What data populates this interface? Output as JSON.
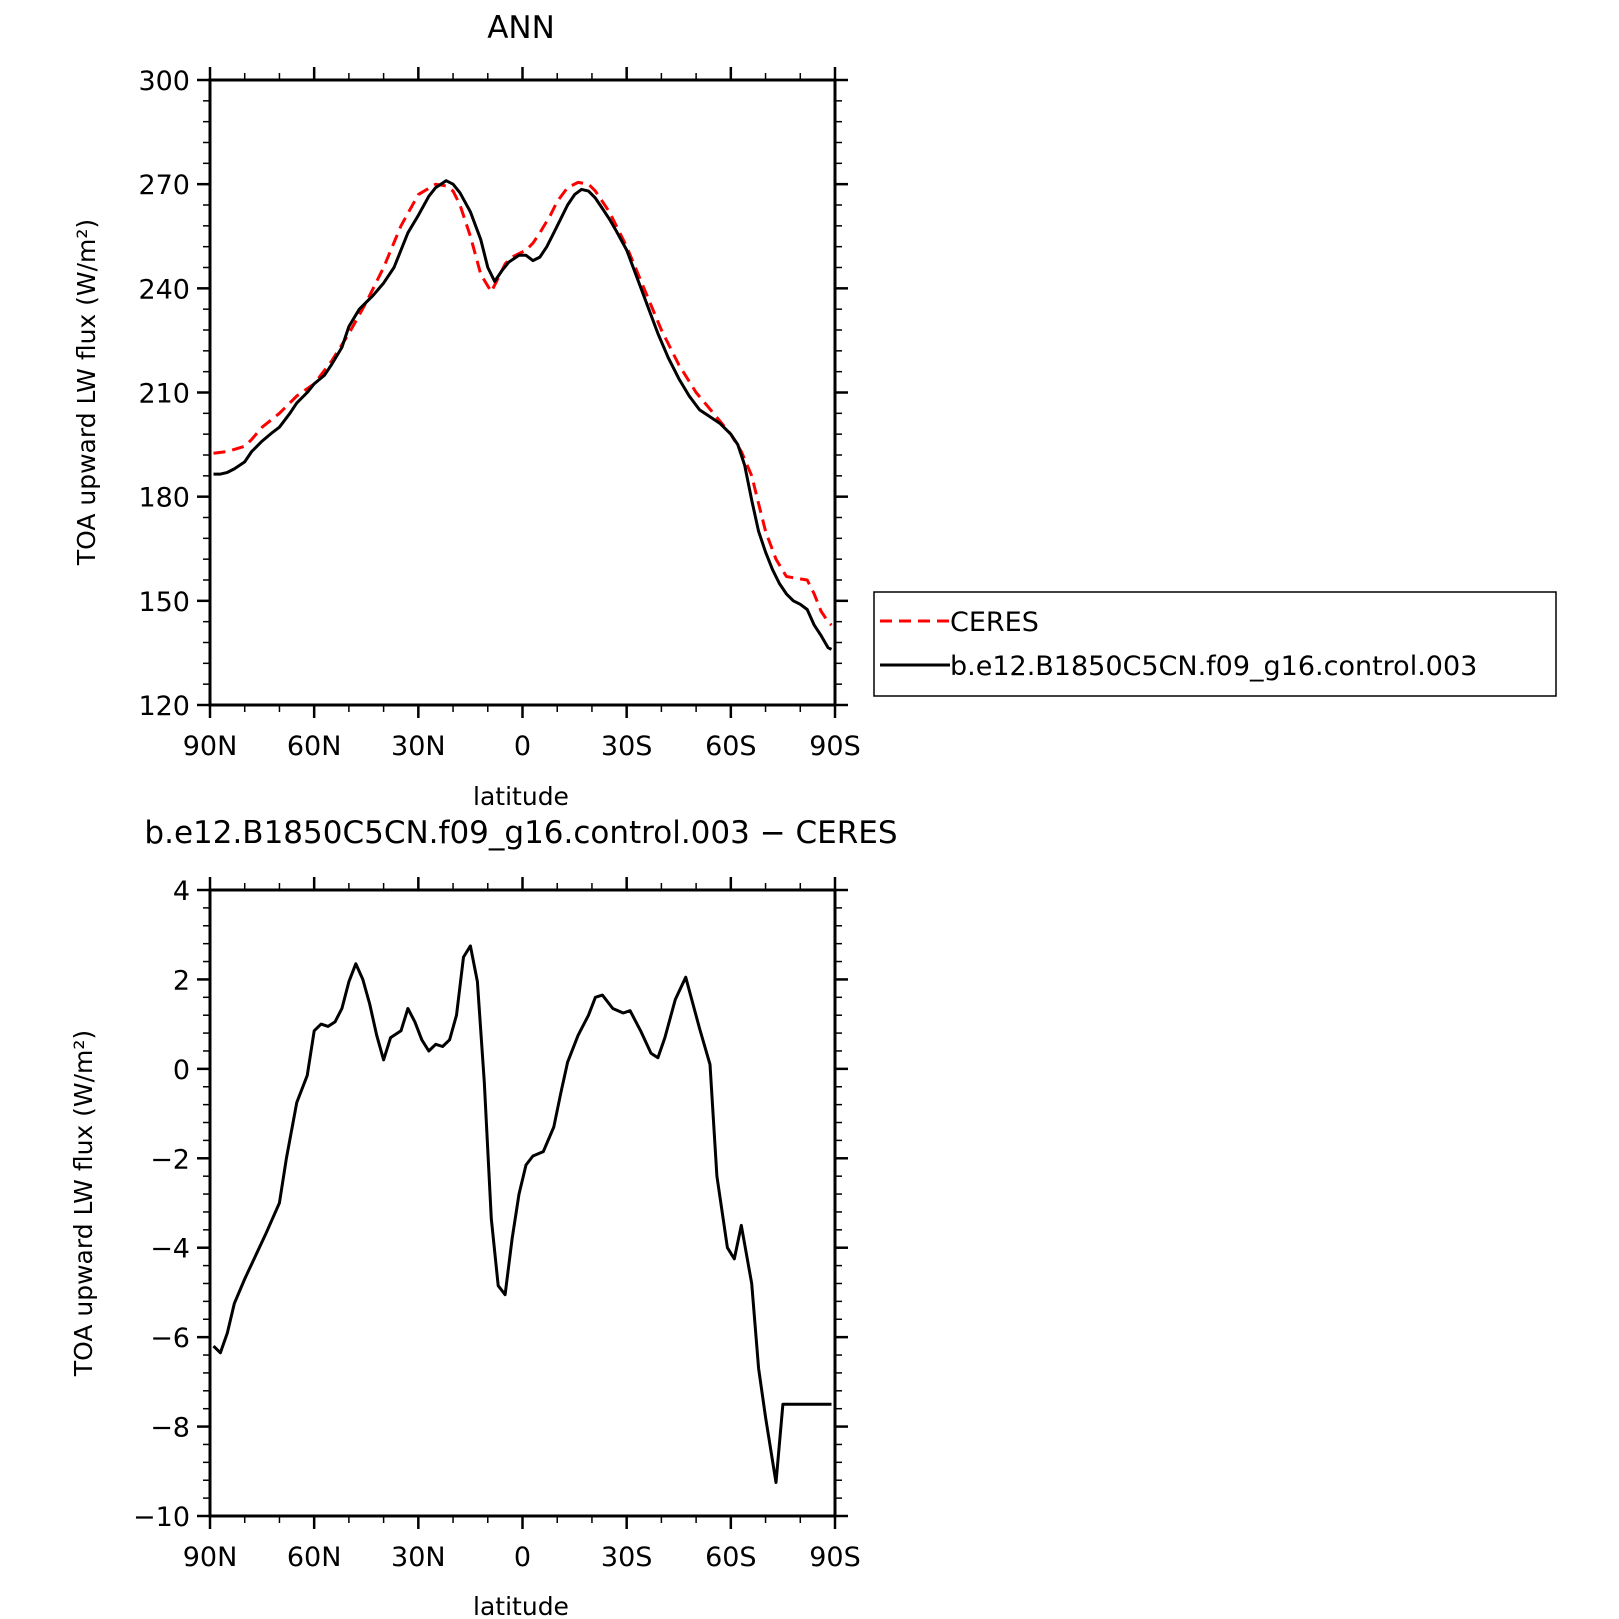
{
  "chart_data": [
    {
      "type": "line",
      "title": "ANN",
      "xlabel": "latitude",
      "ylabel": "TOA upward LW flux (W/m²)",
      "xlim": [
        -90,
        90
      ],
      "ylim": [
        120,
        300
      ],
      "x_ticks": [
        -90,
        -60,
        -30,
        0,
        30,
        60,
        90
      ],
      "x_tick_labels": [
        "90N",
        "60N",
        "30N",
        "0",
        "30S",
        "60S",
        "90S"
      ],
      "y_ticks": [
        120,
        150,
        180,
        210,
        240,
        270,
        300
      ],
      "y_tick_labels": [
        "120",
        "150",
        "180",
        "210",
        "240",
        "270",
        "300"
      ],
      "grid": false,
      "legend_position": "right-outside",
      "series": [
        {
          "name": "CERES",
          "color": "#ff0000",
          "dash": "dashed",
          "x": [
            -89,
            -85,
            -80,
            -78,
            -75,
            -70,
            -65,
            -60,
            -55,
            -50,
            -45,
            -40,
            -35,
            -30,
            -25,
            -22,
            -20,
            -18,
            -15,
            -12,
            -9,
            -7,
            -5,
            -3,
            -1,
            1,
            3,
            5,
            8,
            10,
            13,
            16,
            19,
            21,
            23,
            25,
            27,
            30,
            35,
            40,
            45,
            50,
            55,
            60,
            63,
            66,
            68,
            70,
            73,
            76,
            79,
            82,
            84,
            86,
            88,
            89
          ],
          "y": [
            192.5,
            193,
            194.5,
            196.5,
            200,
            204,
            209,
            212.5,
            219,
            227,
            236,
            246,
            258,
            267,
            270,
            269.5,
            268,
            264,
            255,
            244,
            239,
            243,
            247,
            249,
            250,
            251,
            253,
            256,
            261,
            265,
            269,
            270.5,
            270,
            268,
            265,
            262,
            258,
            252,
            240,
            228,
            218,
            210,
            204,
            198,
            193,
            186,
            178,
            170,
            162,
            157,
            156.5,
            156,
            152,
            147,
            144,
            143
          ]
        },
        {
          "name": "b.e12.B1850C5CN.f09_g16.control.003",
          "color": "#000000",
          "dash": "solid",
          "x": [
            -89,
            -87,
            -85,
            -83,
            -80,
            -78,
            -75,
            -72,
            -70,
            -67,
            -65,
            -62,
            -60,
            -57,
            -55,
            -52,
            -50,
            -47,
            -45,
            -43,
            -40,
            -37,
            -35,
            -33,
            -30,
            -27,
            -25,
            -22,
            -20,
            -18,
            -15,
            -12,
            -10,
            -8,
            -6,
            -4,
            -1,
            1,
            3,
            5,
            7,
            9,
            11,
            13,
            15,
            17,
            19,
            21,
            23,
            25,
            27,
            30,
            33,
            36,
            39,
            42,
            45,
            48,
            51,
            54,
            57,
            60,
            62,
            64,
            66,
            68,
            70,
            72,
            74,
            76,
            78,
            80,
            82,
            84,
            86,
            88,
            89
          ],
          "y": [
            186.5,
            186.5,
            187,
            188,
            190,
            193,
            196,
            198.5,
            200,
            204,
            207,
            210,
            212.5,
            215,
            218,
            223,
            229,
            234,
            236,
            238,
            241.5,
            246,
            251,
            256,
            261,
            266.5,
            269,
            271,
            270,
            267.5,
            262,
            254,
            246,
            242,
            245,
            247.5,
            249.5,
            249.5,
            248,
            249,
            252,
            256,
            260,
            264,
            267,
            268.5,
            268,
            266,
            263,
            260,
            256.5,
            251,
            243,
            235,
            227,
            220,
            214,
            209,
            205,
            203,
            201,
            198,
            195,
            189,
            179,
            170,
            164,
            159,
            155,
            152,
            150,
            149,
            147.5,
            143,
            140,
            136.5,
            136
          ]
        }
      ]
    },
    {
      "type": "line",
      "title": "b.e12.B1850C5CN.f09_g16.control.003 − CERES",
      "xlabel": "latitude",
      "ylabel": "TOA upward LW flux (W/m²)",
      "xlim": [
        -90,
        90
      ],
      "ylim": [
        -10,
        4
      ],
      "x_ticks": [
        -90,
        -60,
        -30,
        0,
        30,
        60,
        90
      ],
      "x_tick_labels": [
        "90N",
        "60N",
        "30N",
        "0",
        "30S",
        "60S",
        "90S"
      ],
      "y_ticks": [
        -10,
        -8,
        -6,
        -4,
        -2,
        0,
        2,
        4
      ],
      "y_tick_labels": [
        "−10",
        "−8",
        "−6",
        "−4",
        "−2",
        "0",
        "2",
        "4"
      ],
      "grid": false,
      "series": [
        {
          "color": "#000000",
          "dash": "solid",
          "x": [
            -89,
            -87,
            -85,
            -83,
            -80,
            -77,
            -74,
            -70,
            -68,
            -65,
            -62,
            -60,
            -58,
            -56,
            -54,
            -52,
            -50,
            -48,
            -46,
            -44,
            -42,
            -40,
            -38,
            -35,
            -33,
            -31,
            -29,
            -27,
            -25,
            -23,
            -21,
            -19,
            -17,
            -15,
            -13,
            -11,
            -9,
            -7,
            -5,
            -3,
            -1,
            1,
            3,
            6,
            9,
            11,
            13,
            16,
            19,
            21,
            23,
            26,
            29,
            31,
            34,
            37,
            39,
            41,
            44,
            47,
            51,
            54,
            56,
            59,
            61,
            63,
            66,
            68,
            70,
            73,
            75,
            77,
            79,
            81,
            83,
            85,
            87,
            89
          ],
          "y": [
            -6.2,
            -6.35,
            -5.9,
            -5.25,
            -4.7,
            -4.2,
            -3.7,
            -3.0,
            -2.0,
            -0.75,
            -0.15,
            0.85,
            1.0,
            0.95,
            1.05,
            1.35,
            1.95,
            2.35,
            2.0,
            1.45,
            0.75,
            0.2,
            0.7,
            0.85,
            1.35,
            1.05,
            0.65,
            0.4,
            0.55,
            0.5,
            0.65,
            1.2,
            2.5,
            2.75,
            1.95,
            -0.3,
            -3.35,
            -4.85,
            -5.05,
            -3.8,
            -2.8,
            -2.15,
            -1.95,
            -1.85,
            -1.3,
            -0.55,
            0.15,
            0.75,
            1.2,
            1.6,
            1.65,
            1.35,
            1.25,
            1.3,
            0.85,
            0.35,
            0.25,
            0.7,
            1.55,
            2.05,
            0.9,
            0.1,
            -2.4,
            -4.0,
            -4.25,
            -3.5,
            -4.8,
            -6.7,
            -7.8,
            -9.25,
            -7.5,
            -7.5,
            -7.5,
            -7.5,
            -7.5,
            -7.5,
            -7.5,
            -7.5
          ]
        }
      ]
    }
  ]
}
